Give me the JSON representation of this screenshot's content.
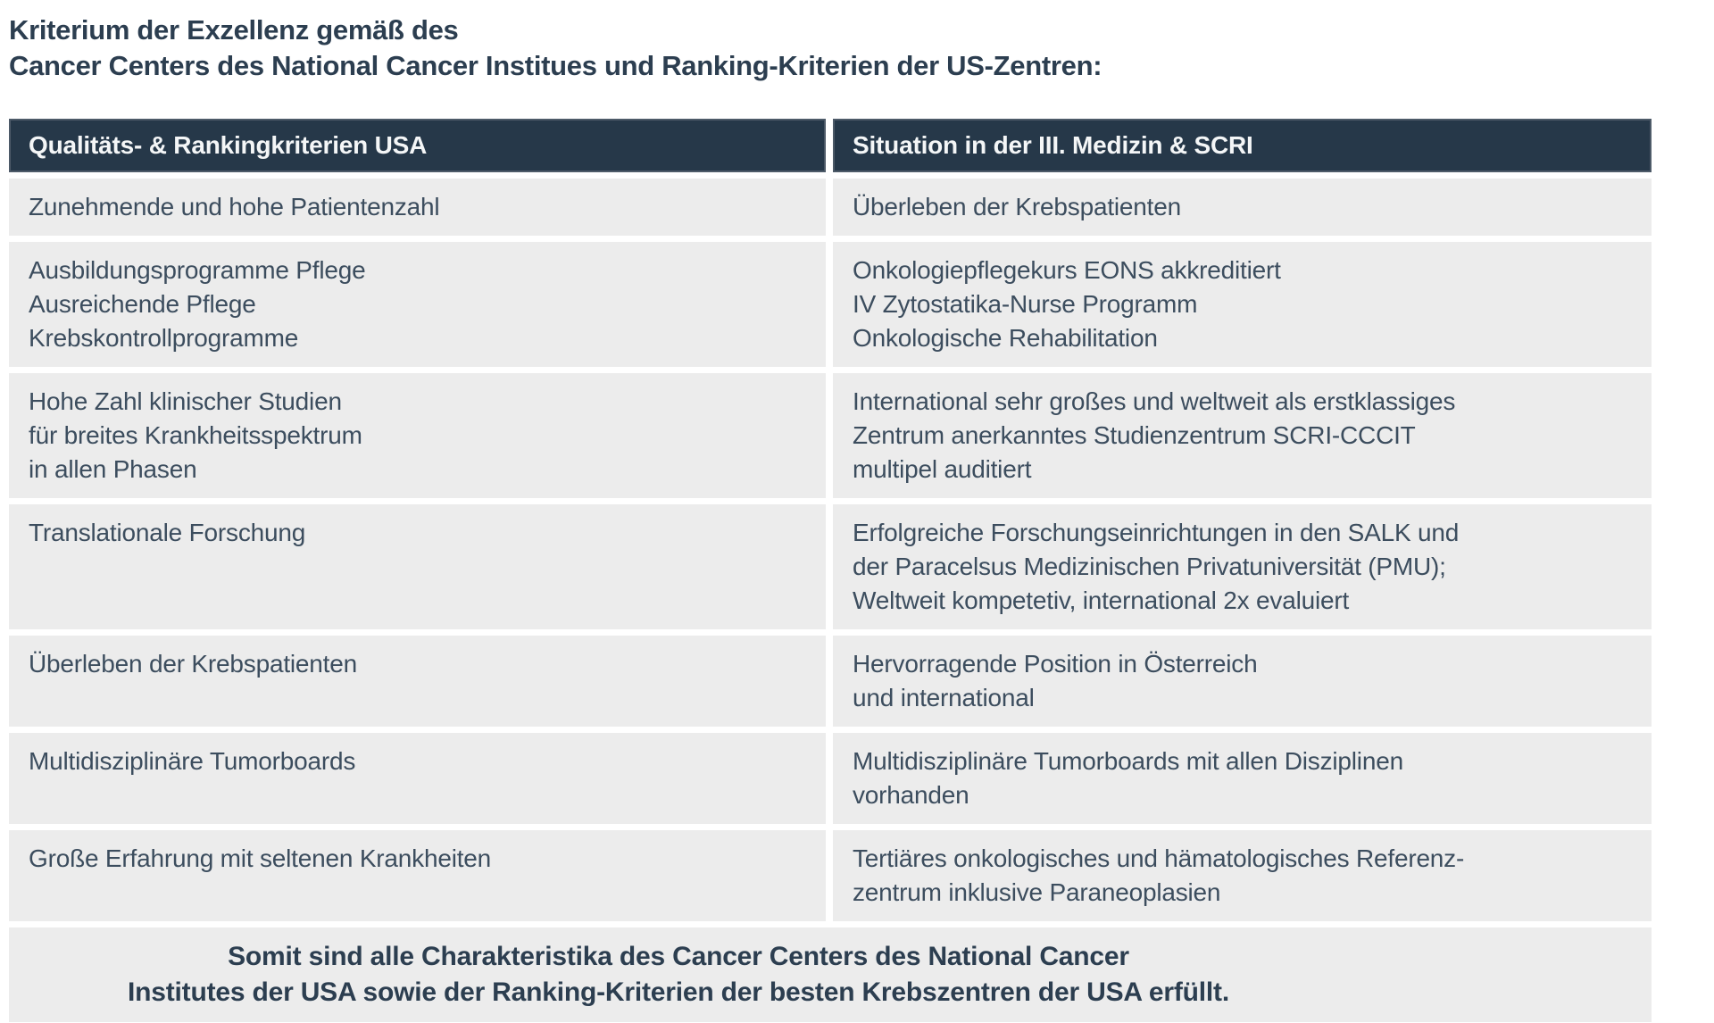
{
  "title": "Kriterium der Exzellenz gemäß des\nCancer Centers des National Cancer Institues und Ranking-Kriterien der US-Zentren:",
  "table": {
    "headers": {
      "left": "Qualitäts- & Rankingkriterien USA",
      "right": "Situation in der III. Medizin & SCRI"
    },
    "rows": [
      {
        "left": "Zunehmende und hohe Patientenzahl",
        "right": "Überleben der Krebspatienten"
      },
      {
        "left": "Ausbildungsprogramme Pflege\nAusreichende Pflege\nKrebskontrollprogramme",
        "right": "Onkologiepflegekurs EONS akkreditiert\nIV Zytostatika-Nurse Programm\nOnkologische Rehabilitation"
      },
      {
        "left": "Hohe Zahl klinischer Studien\nfür breites Krankheitsspektrum\nin allen Phasen",
        "right": "International sehr großes und weltweit als erstklassiges\nZentrum anerkanntes Studienzentrum SCRI-CCCIT\nmultipel auditiert"
      },
      {
        "left": "Translationale Forschung",
        "right": "Erfolgreiche Forschungseinrichtungen in den SALK und\nder Paracelsus Medizinischen Privatuniversität (PMU);\nWeltweit kompetetiv, international 2x evaluiert"
      },
      {
        "left": "Überleben der Krebspatienten",
        "right": "Hervorragende Position in Österreich\nund international"
      },
      {
        "left": "Multidisziplinäre Tumorboards",
        "right": "Multidisziplinäre Tumorboards mit allen Disziplinen\nvorhanden"
      },
      {
        "left": "Große Erfahrung mit seltenen Krankheiten",
        "right": "Tertiäres onkologisches und hämatologisches Referenz-\nzentrum inklusive Paraneoplasien"
      }
    ],
    "footer": "Somit sind alle Charakteristika des Cancer Centers des National Cancer\nInstitutes der USA sowie der Ranking-Kriterien der besten Krebszentren der USA erfüllt."
  },
  "colors": {
    "header_bg": "#263849",
    "header_border": "#4d5a68",
    "header_text": "#f4f6f7",
    "row_bg": "#ececec",
    "body_text": "#3c4d5e",
    "title_text": "#2c3e50",
    "page_bg": "#ffffff"
  }
}
